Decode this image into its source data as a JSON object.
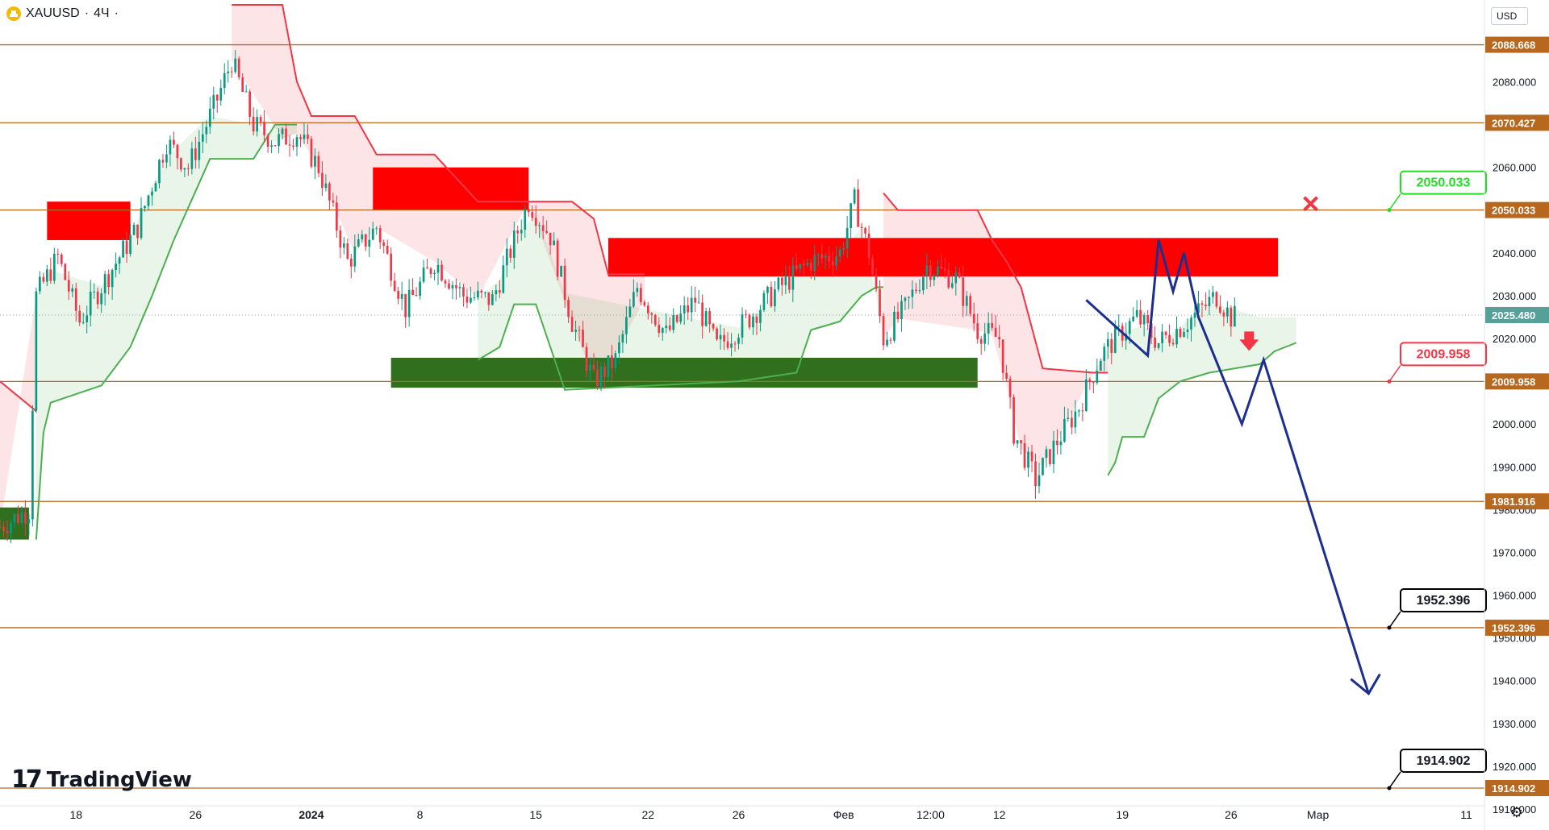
{
  "header": {
    "symbol": "XAUUSD",
    "separator": "·",
    "interval": "4Ч",
    "trailing": "·",
    "currency": "USD"
  },
  "branding": {
    "logo_text": "TradingView",
    "logo_mark": "17"
  },
  "colors": {
    "up_candle": "#089981",
    "down_candle": "#f23645",
    "level_line": "#b8671e",
    "supply_zone": "#ff0000",
    "demand_zone": "#2f6f1e",
    "trail_red": "#f23645",
    "trail_green": "#4caf50",
    "forecast": "#1c2f8f",
    "tag_red": "#f23645",
    "tag_green": "#22dd22",
    "tag_black": "#000000"
  },
  "chart_data": {
    "type": "candlestick",
    "symbol": "XAUUSD",
    "timeframe": "4H",
    "y_axis": {
      "range": [
        1910,
        2098
      ],
      "ticks": [
        "2080.000",
        "2070.000",
        "2060.000",
        "2050.000",
        "2040.000",
        "2030.000",
        "2020.000",
        "2010.000",
        "2000.000",
        "1990.000",
        "1980.000",
        "1970.000",
        "1960.000",
        "1950.000",
        "1940.000",
        "1930.000",
        "1920.000",
        "1910.000"
      ],
      "tick_values": [
        2080,
        2070,
        2060,
        2050,
        2040,
        2030,
        2020,
        2010,
        2000,
        1990,
        1980,
        1970,
        1960,
        1950,
        1940,
        1930,
        1920,
        1910
      ]
    },
    "x_axis": {
      "ticks": [
        "18",
        "26",
        "2024",
        "8",
        "15",
        "22",
        "26",
        "Фев",
        "12:00",
        "12",
        "19",
        "26",
        "Мар",
        "11"
      ],
      "tick_index": [
        13,
        46,
        78,
        108,
        140,
        171,
        196,
        225,
        249,
        268,
        302,
        332,
        356,
        397
      ],
      "range_index": [
        -8,
        402
      ]
    },
    "last_price": {
      "label": "2025.480",
      "value": 2025.48
    },
    "horizontal_levels": [
      {
        "value": 2088.668,
        "label": "2088.668"
      },
      {
        "value": 2070.427,
        "label": "2070.427"
      },
      {
        "value": 2050.033,
        "label": "2050.033"
      },
      {
        "value": 2009.958,
        "label": "2009.958"
      },
      {
        "value": 1981.916,
        "label": "1981.916"
      },
      {
        "value": 1952.396,
        "label": "1952.396"
      },
      {
        "value": 1914.902,
        "label": "1914.902"
      }
    ],
    "price_tags": [
      {
        "label": "2050.033",
        "value": 2050.033,
        "style": "green"
      },
      {
        "label": "2009.958",
        "value": 2009.958,
        "style": "red"
      },
      {
        "label": "1952.396",
        "value": 1952.396,
        "style": "black"
      },
      {
        "label": "1914.902",
        "value": 1914.902,
        "style": "black"
      }
    ],
    "zones": [
      {
        "kind": "supply",
        "x0": 5,
        "x1": 28,
        "top": 2052,
        "bottom": 2043
      },
      {
        "kind": "supply",
        "x0": 95,
        "x1": 138,
        "top": 2060,
        "bottom": 2050
      },
      {
        "kind": "supply",
        "x0": 160,
        "x1": 345,
        "top": 2043.5,
        "bottom": 2034.5
      },
      {
        "kind": "demand",
        "x0": 100,
        "x1": 262,
        "top": 2015.5,
        "bottom": 2008.5
      },
      {
        "kind": "demand",
        "x0": -8,
        "x1": 0,
        "top": 1980.5,
        "bottom": 1973
      }
    ],
    "forecast_path": [
      {
        "x": 292,
        "y": 2029
      },
      {
        "x": 309,
        "y": 2016
      },
      {
        "x": 312,
        "y": 2043
      },
      {
        "x": 316,
        "y": 2031
      },
      {
        "x": 319,
        "y": 2040
      },
      {
        "x": 323,
        "y": 2025
      },
      {
        "x": 335,
        "y": 2000
      },
      {
        "x": 341,
        "y": 2015
      },
      {
        "x": 370,
        "y": 1937
      }
    ],
    "markers": [
      {
        "kind": "cross",
        "x": 354,
        "y": 2051.5
      },
      {
        "kind": "down_arrow",
        "x": 337,
        "y": 2019
      }
    ]
  }
}
